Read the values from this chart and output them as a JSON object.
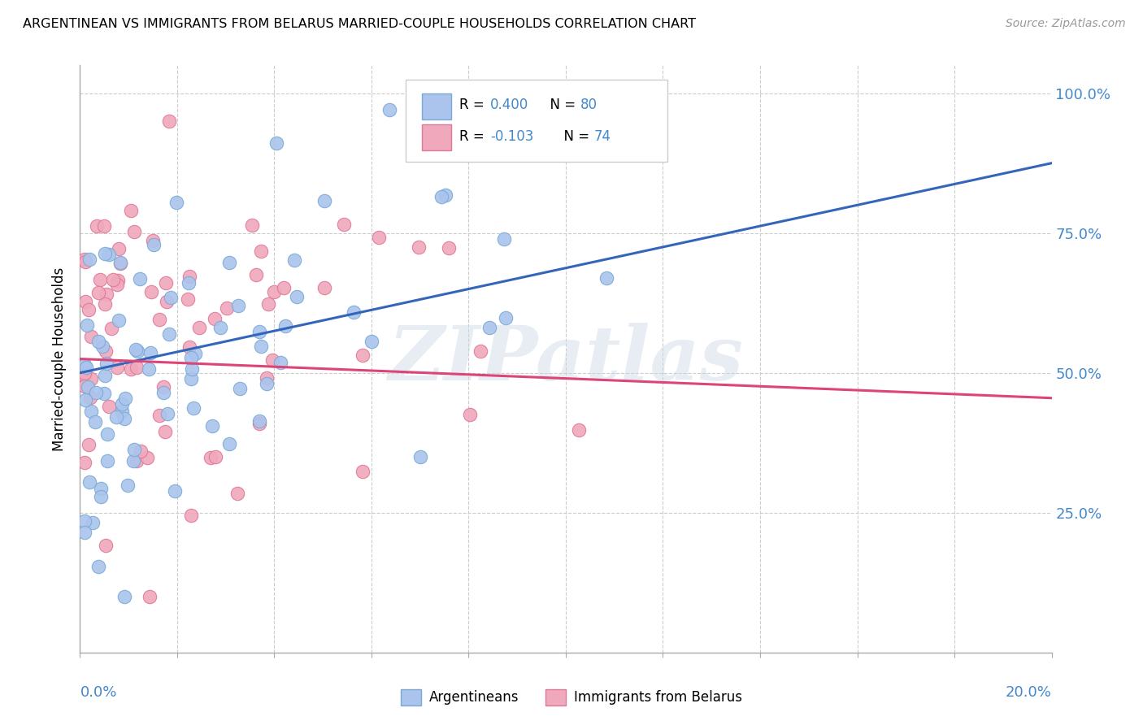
{
  "title": "ARGENTINEAN VS IMMIGRANTS FROM BELARUS MARRIED-COUPLE HOUSEHOLDS CORRELATION CHART",
  "source": "Source: ZipAtlas.com",
  "ylabel": "Married-couple Households",
  "x_range": [
    0.0,
    0.2
  ],
  "y_range": [
    0.0,
    1.05
  ],
  "y_ticks": [
    0.0,
    0.25,
    0.5,
    0.75,
    1.0
  ],
  "y_tick_labels": [
    "",
    "25.0%",
    "50.0%",
    "75.0%",
    "100.0%"
  ],
  "series1_color": "#aac4ed",
  "series1_edge": "#7aaad4",
  "series2_color": "#f0a8bc",
  "series2_edge": "#e07898",
  "trend1_color": "#3366bb",
  "trend2_color": "#dd4477",
  "legend_r1_label": "R = ",
  "legend_r1_val": "0.400",
  "legend_n1_label": "  N = ",
  "legend_n1_val": "80",
  "legend_r2_label": "R = ",
  "legend_r2_val": "-0.103",
  "legend_n2_label": "  N = ",
  "legend_n2_val": "74",
  "watermark": "ZIPatlas",
  "tick_color": "#4488cc",
  "label_color": "#4488cc",
  "grid_color": "#cccccc",
  "trend1_y0": 0.5,
  "trend1_y1": 0.875,
  "trend2_y0": 0.525,
  "trend2_y1": 0.455
}
